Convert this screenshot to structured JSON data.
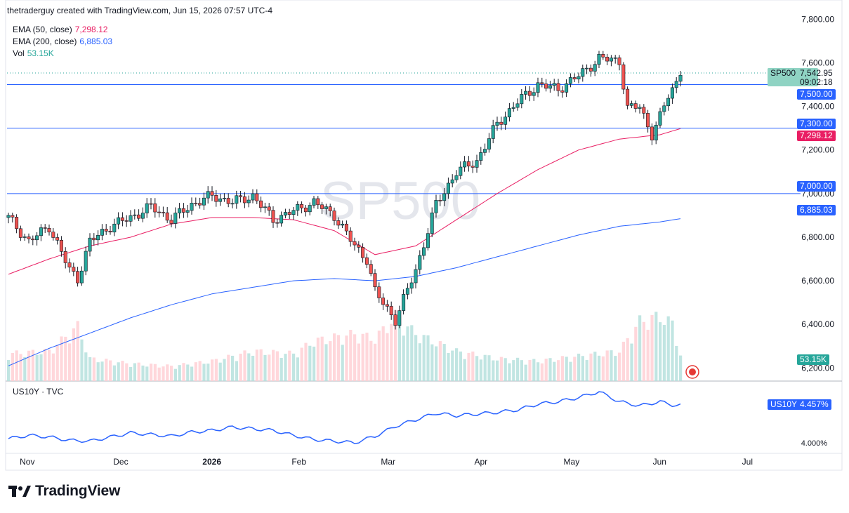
{
  "header": {
    "attribution": "thetraderguy created with TradingView.com, Jun 15, 2026 07:57 UTC-4"
  },
  "legend": [
    {
      "label": "EMA (50, close)",
      "value": "7,298.12",
      "color": "#e91e63"
    },
    {
      "label": "EMA (200, close)",
      "value": "6,885.03",
      "color": "#2962ff"
    },
    {
      "label": "Vol",
      "value": "53.15K",
      "color": "#26a69a"
    }
  ],
  "watermark": "SP500",
  "price_tags": {
    "symbol": "SP500",
    "last": "7,542.95",
    "countdown": "09:02:18",
    "level_7500": "7,500.00",
    "level_7300": "7,300.00",
    "ema50": "7,298.12",
    "level_7000": "7,000.00",
    "ema200": "6,885.03",
    "volume": "53.15K"
  },
  "sub_pane": {
    "title": "US10Y · TVC",
    "tag_symbol": "US10Y",
    "tag_value": "4.457%",
    "axis_label": "4.000%"
  },
  "logo": {
    "text": "TradingView"
  },
  "colors": {
    "up": "#26a69a",
    "down": "#ef5350",
    "ema50": "#e91e63",
    "ema200": "#2962ff",
    "line": "#2962ff",
    "level": "#2962ff"
  },
  "chart_data": [
    {
      "type": "candlestick",
      "title": "SP500",
      "x_ticks": [
        "Nov",
        "Dec",
        "2026",
        "Feb",
        "Mar",
        "Apr",
        "May",
        "Jun",
        "Jul"
      ],
      "y_ticks": [
        6200,
        6400,
        6600,
        6800,
        7000,
        7200,
        7400,
        7600,
        7800
      ],
      "ylim": [
        6140,
        7830
      ],
      "horizontal_levels": [
        7500,
        7300,
        7000
      ],
      "last_price": 7542.95,
      "series": [
        {
          "name": "EMA (50, close)",
          "type": "line",
          "x": [
            0,
            10,
            20,
            30,
            40,
            50,
            60,
            70,
            80,
            90,
            100,
            110,
            120,
            130,
            140,
            150,
            160,
            165
          ],
          "values": [
            6630,
            6700,
            6760,
            6800,
            6860,
            6890,
            6890,
            6880,
            6830,
            6720,
            6760,
            6880,
            7000,
            7110,
            7200,
            7250,
            7270,
            7298
          ]
        },
        {
          "name": "EMA (200, close)",
          "type": "line",
          "x": [
            0,
            10,
            20,
            30,
            40,
            50,
            60,
            70,
            80,
            90,
            100,
            110,
            120,
            130,
            140,
            150,
            160,
            165
          ],
          "values": [
            6210,
            6290,
            6360,
            6430,
            6490,
            6540,
            6570,
            6600,
            6610,
            6600,
            6620,
            6660,
            6710,
            6760,
            6810,
            6850,
            6870,
            6885
          ]
        }
      ],
      "price_path": {
        "x": [
          0,
          5,
          10,
          15,
          17,
          20,
          25,
          30,
          35,
          40,
          45,
          50,
          55,
          60,
          65,
          70,
          75,
          80,
          85,
          88,
          90,
          95,
          100,
          105,
          110,
          115,
          120,
          125,
          130,
          135,
          140,
          145,
          150,
          152,
          155,
          158,
          160,
          162,
          165
        ],
        "values": [
          6890,
          6780,
          6850,
          6650,
          6610,
          6780,
          6850,
          6890,
          6940,
          6880,
          6950,
          6990,
          6960,
          6990,
          6880,
          6920,
          6960,
          6900,
          6760,
          6700,
          6550,
          6420,
          6650,
          6950,
          7100,
          7150,
          7320,
          7420,
          7500,
          7480,
          7540,
          7620,
          7610,
          7390,
          7400,
          7270,
          7350,
          7450,
          7543
        ]
      },
      "volume": {
        "ylim": [
          0,
          160000
        ],
        "x": [
          0,
          10,
          17,
          20,
          30,
          40,
          50,
          60,
          70,
          75,
          85,
          90,
          95,
          100,
          110,
          120,
          130,
          140,
          150,
          155,
          160,
          163,
          165
        ],
        "values": [
          55000,
          60000,
          110000,
          45000,
          35000,
          30000,
          40000,
          60000,
          55000,
          80000,
          95000,
          85000,
          130000,
          95000,
          60000,
          45000,
          40000,
          50000,
          60000,
          120000,
          130000,
          115000,
          53150
        ]
      }
    },
    {
      "type": "line",
      "title": "US10Y · TVC",
      "y_ticks": [
        4.0
      ],
      "ylim": [
        3.88,
        4.75
      ],
      "series": [
        {
          "name": "US10Y",
          "x": [
            0,
            5,
            10,
            15,
            20,
            25,
            30,
            35,
            40,
            45,
            50,
            55,
            60,
            65,
            70,
            75,
            80,
            85,
            90,
            95,
            100,
            105,
            110,
            115,
            120,
            125,
            130,
            135,
            140,
            145,
            150,
            155,
            160,
            163,
            165
          ],
          "values": [
            4.05,
            4.09,
            4.07,
            4.03,
            4.02,
            4.07,
            4.12,
            4.1,
            4.08,
            4.13,
            4.15,
            4.19,
            4.17,
            4.15,
            4.09,
            4.04,
            4.02,
            4.0,
            4.08,
            4.2,
            4.28,
            4.36,
            4.33,
            4.35,
            4.37,
            4.4,
            4.47,
            4.5,
            4.55,
            4.62,
            4.5,
            4.45,
            4.5,
            4.46,
            4.457
          ]
        }
      ]
    }
  ]
}
